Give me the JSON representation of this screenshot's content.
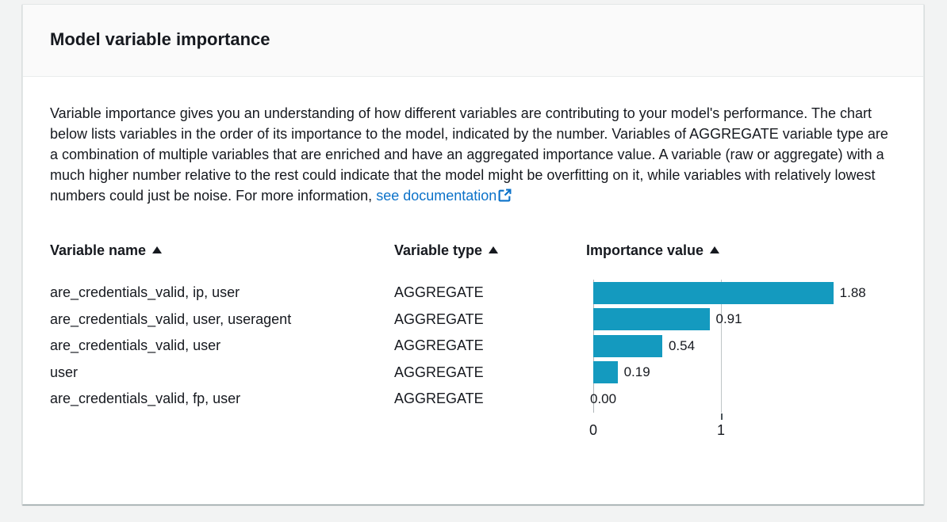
{
  "colors": {
    "page_background": "#f2f3f3",
    "card_background": "#ffffff",
    "header_background": "#fafafa",
    "bar_color": "#149abf",
    "link_color": "#0b72c9",
    "text_color": "#16191f"
  },
  "card": {
    "title": "Model variable importance",
    "description": "Variable importance gives you an understanding of how different variables are contributing to your model's performance. The chart below lists variables in the order of its importance to the model, indicated by the number. Variables of AGGREGATE variable type are a combination of multiple variables that are enriched and have an aggregated importance value. A variable (raw or aggregate) with a much higher number relative to the rest could indicate that the model might be overfitting on it, while variables with relatively lowest numbers could just be noise. For more information, ",
    "link_text": "see documentation"
  },
  "table": {
    "columns": [
      {
        "label": "Variable name",
        "sort": "ascending"
      },
      {
        "label": "Variable type",
        "sort": "ascending"
      },
      {
        "label": "Importance value",
        "sort": "ascending"
      }
    ],
    "rows": [
      {
        "name": "are_credentials_valid, ip, user",
        "type": "AGGREGATE",
        "value": "1.88"
      },
      {
        "name": "are_credentials_valid, user, useragent",
        "type": "AGGREGATE",
        "value": "0.91"
      },
      {
        "name": "are_credentials_valid, user",
        "type": "AGGREGATE",
        "value": "0.54"
      },
      {
        "name": "user",
        "type": "AGGREGATE",
        "value": "0.19"
      },
      {
        "name": "are_credentials_valid, fp, user",
        "type": "AGGREGATE",
        "value": "0.00"
      }
    ]
  },
  "chart_data": {
    "type": "bar",
    "orientation": "horizontal",
    "categories": [
      "are_credentials_valid, ip, user",
      "are_credentials_valid, user, useragent",
      "are_credentials_valid, user",
      "user",
      "are_credentials_valid, fp, user"
    ],
    "values": [
      1.88,
      0.91,
      0.54,
      0.19,
      0.0
    ],
    "value_labels": [
      "1.88",
      "0.91",
      "0.54",
      "0.19",
      "0.00"
    ],
    "title": "Importance value",
    "xlabel": "",
    "ylabel": "",
    "x_ticks": [
      0,
      1
    ],
    "xlim": [
      0,
      2.35
    ],
    "grid": true,
    "legend": false,
    "bar_color": "#149abf"
  }
}
